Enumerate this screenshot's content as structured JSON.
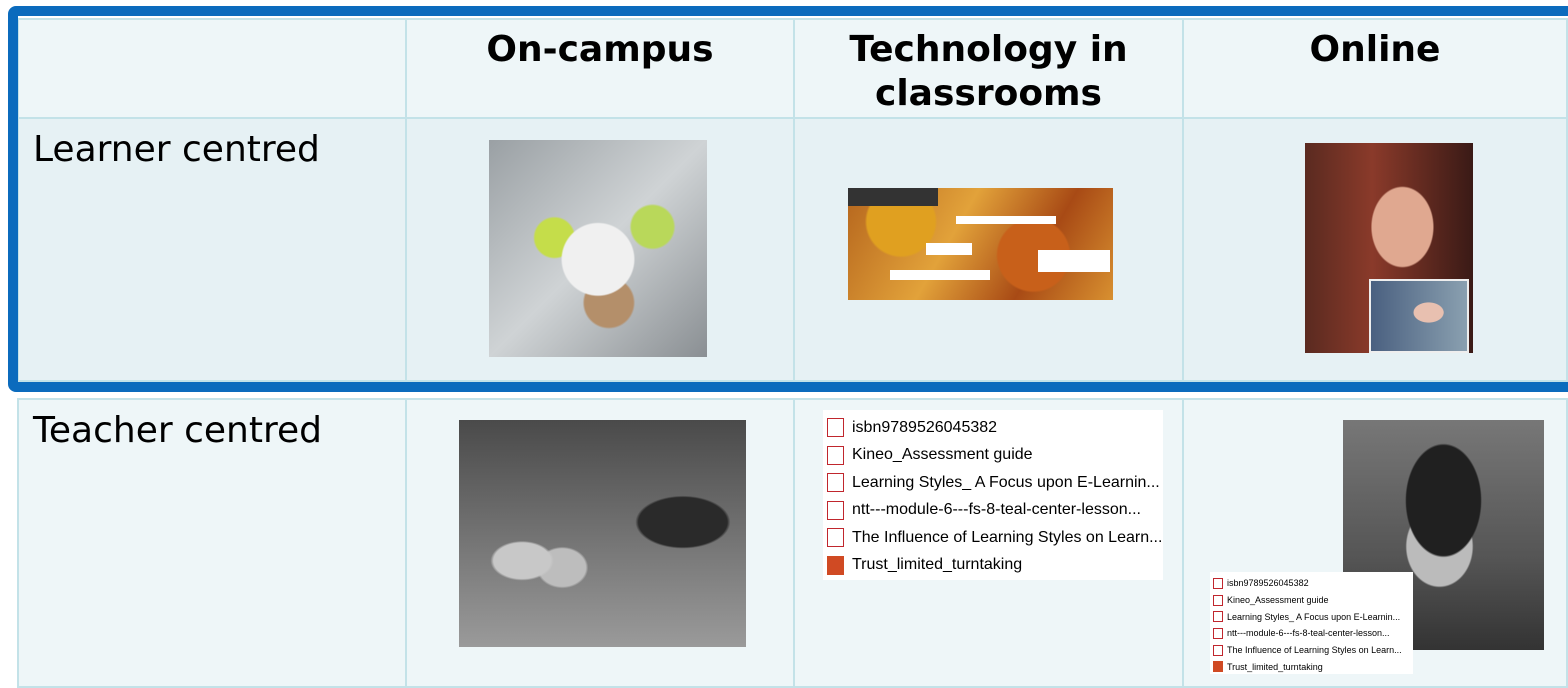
{
  "table": {
    "header": [
      "On-campus",
      "Technology in classrooms",
      "Online"
    ],
    "rows": [
      {
        "label": "Learner centred"
      },
      {
        "label": "Teacher centred",
        "files": [
          "isbn9789526045382",
          "Kineo_Assessment guide",
          "Learning Styles_ A Focus upon E-Learnin...",
          "ntt---module-6---fs-8-teal-center-lesson...",
          "The Influence of Learning Styles on Learn...",
          "Trust_limited_turntaking"
        ],
        "online_files": [
          "isbn9789526045382",
          "Kineo_Assessment guide",
          "Learning Styles_ A Focus upon E-Learnin...",
          "ntt---module-6---fs-8-teal-center-lesson...",
          "The Influence of Learning Styles on Learn...",
          "Trust_limited_turntaking"
        ]
      }
    ]
  }
}
